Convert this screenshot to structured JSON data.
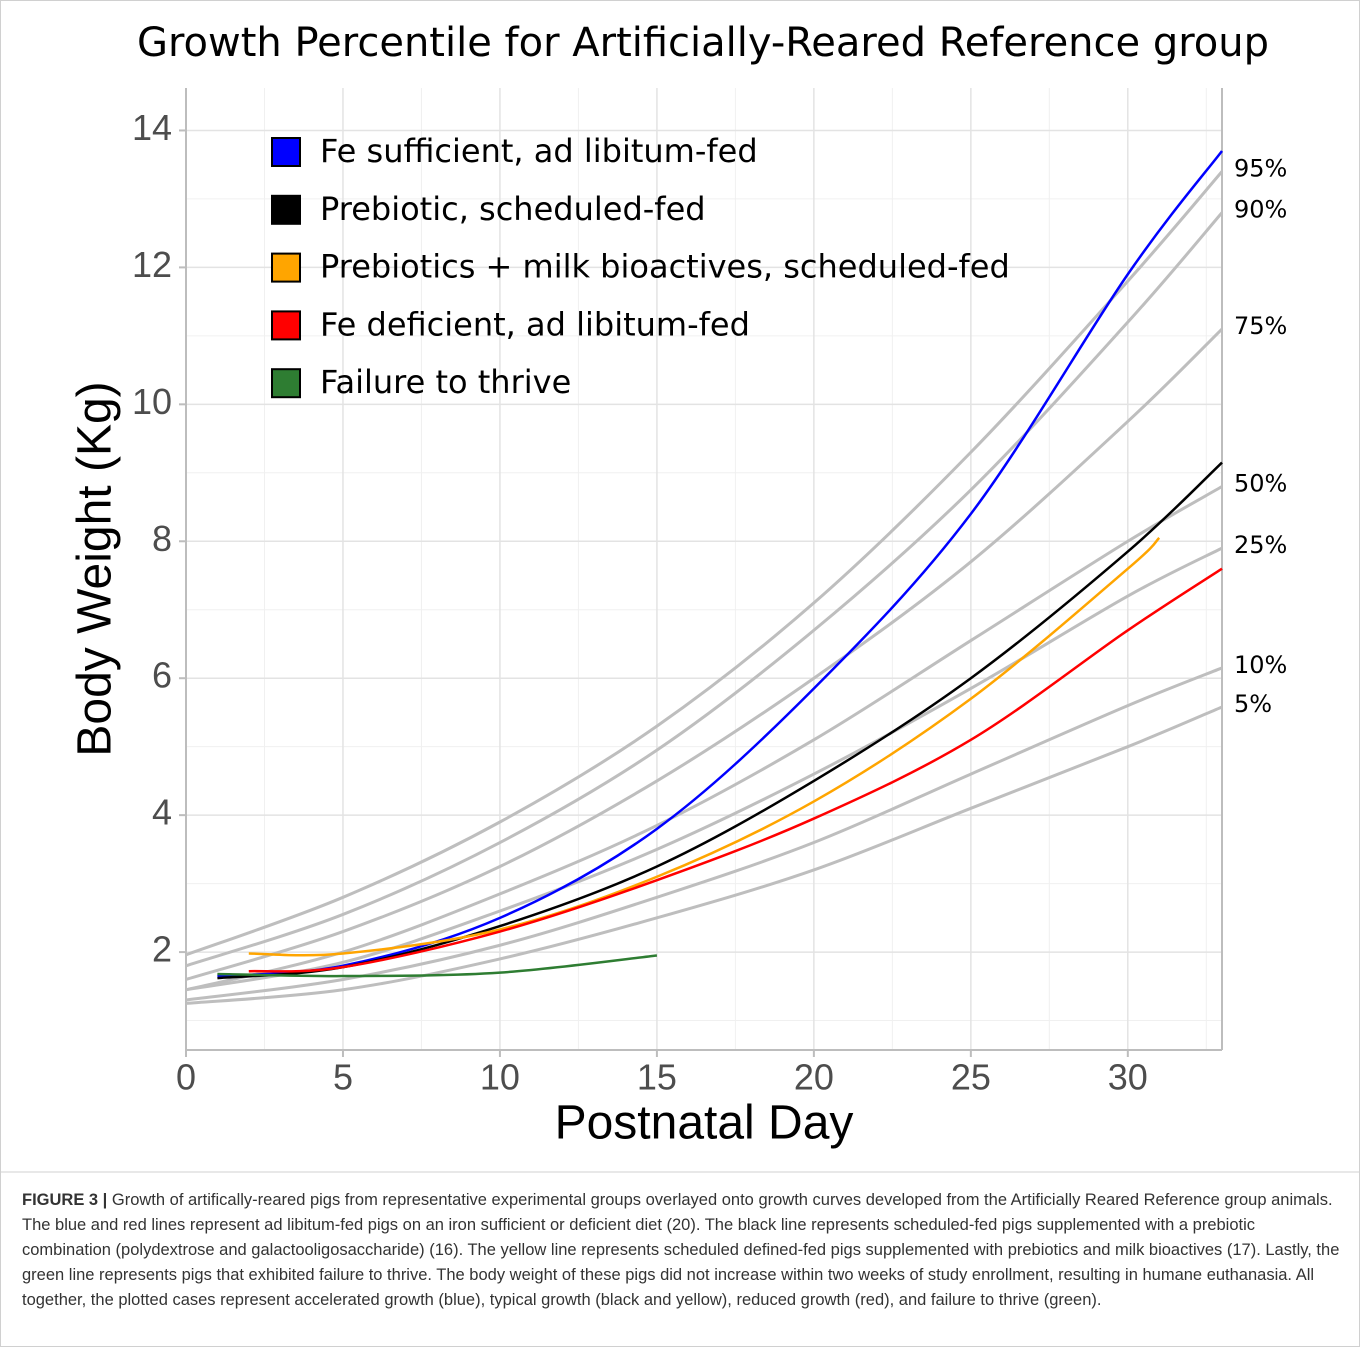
{
  "chart_data": {
    "type": "line",
    "title": "Growth Percentile for Artificially-Reared Reference group",
    "x_label": "Postnatal Day",
    "y_label": "Body Weight (Kg)",
    "xlim": [
      0,
      33
    ],
    "ylim": [
      0.57,
      14.62
    ],
    "xticks": [
      0,
      5,
      10,
      15,
      20,
      25,
      30
    ],
    "yticks": [
      2,
      4,
      6,
      8,
      10,
      12,
      14
    ],
    "grid": true,
    "legend": "upper left",
    "percentile_curves": {
      "color": "#bebebe",
      "x": [
        0,
        5,
        10,
        15,
        20,
        25,
        30,
        33
      ],
      "series": [
        {
          "name": "95%",
          "values": [
            1.96,
            2.8,
            3.9,
            5.3,
            7.1,
            9.3,
            11.8,
            13.4
          ]
        },
        {
          "name": "90%",
          "values": [
            1.8,
            2.55,
            3.6,
            4.95,
            6.7,
            8.75,
            11.2,
            12.8
          ]
        },
        {
          "name": "75%",
          "values": [
            1.6,
            2.3,
            3.25,
            4.5,
            6.0,
            7.7,
            9.75,
            11.1
          ]
        },
        {
          "name": "50%",
          "values": [
            1.45,
            2.0,
            2.85,
            3.85,
            5.1,
            6.55,
            8.0,
            8.8
          ]
        },
        {
          "name": "25%",
          "values": [
            1.45,
            1.85,
            2.6,
            3.5,
            4.6,
            5.85,
            7.2,
            7.9
          ]
        },
        {
          "name": "10%",
          "values": [
            1.3,
            1.6,
            2.1,
            2.8,
            3.6,
            4.6,
            5.6,
            6.15
          ]
        },
        {
          "name": "5%",
          "values": [
            1.25,
            1.45,
            1.9,
            2.5,
            3.2,
            4.1,
            5.0,
            5.58
          ]
        }
      ]
    },
    "series": [
      {
        "name": "Fe sufficient, ad libitum-fed",
        "color": "#0000ff",
        "x": [
          1,
          5,
          10,
          15,
          20,
          25,
          30,
          33
        ],
        "values": [
          1.65,
          1.8,
          2.5,
          3.8,
          5.85,
          8.4,
          11.9,
          13.7
        ]
      },
      {
        "name": "Prebiotic, scheduled-fed",
        "color": "#000000",
        "x": [
          1,
          5,
          10,
          15,
          20,
          25,
          30,
          33
        ],
        "values": [
          1.62,
          1.78,
          2.38,
          3.25,
          4.5,
          6.0,
          7.85,
          9.15
        ]
      },
      {
        "name": "Prebiotics + milk bioactives, scheduled-fed",
        "color": "#ffa500",
        "x": [
          2,
          5,
          10,
          15,
          20,
          25,
          30,
          31
        ],
        "values": [
          1.98,
          1.98,
          2.33,
          3.1,
          4.2,
          5.7,
          7.6,
          8.05
        ]
      },
      {
        "name": "Fe deficient, ad libitum-fed",
        "color": "#ff0000",
        "x": [
          2,
          5,
          10,
          15,
          20,
          25,
          30,
          33
        ],
        "values": [
          1.72,
          1.78,
          2.3,
          3.05,
          3.95,
          5.1,
          6.7,
          7.6
        ]
      },
      {
        "name": "Failure to thrive",
        "color": "#2e7d32",
        "x": [
          1,
          5,
          10,
          15
        ],
        "values": [
          1.68,
          1.65,
          1.7,
          1.95
        ]
      }
    ]
  },
  "caption": {
    "label": "FIGURE 3 |",
    "text": "Growth of artifically-reared pigs from representative experimental groups overlayed onto growth curves developed from the Artificially Reared Reference group animals. The blue and red lines represent ad libitum-fed pigs on an iron sufficient or deficient diet (20). The black line represents scheduled-fed pigs supplemented with a prebiotic combination (polydextrose and galactooligosaccharide) (16). The yellow line represents scheduled defined-fed pigs supplemented with prebiotics and milk bioactives (17). Lastly, the green line represents pigs that exhibited failure to thrive. The body weight of these pigs did not increase within two weeks of study enrollment, resulting in humane euthanasia. All together, the plotted cases represent accelerated growth (blue), typical growth (black and yellow), reduced growth (red), and failure to thrive (green)."
  }
}
